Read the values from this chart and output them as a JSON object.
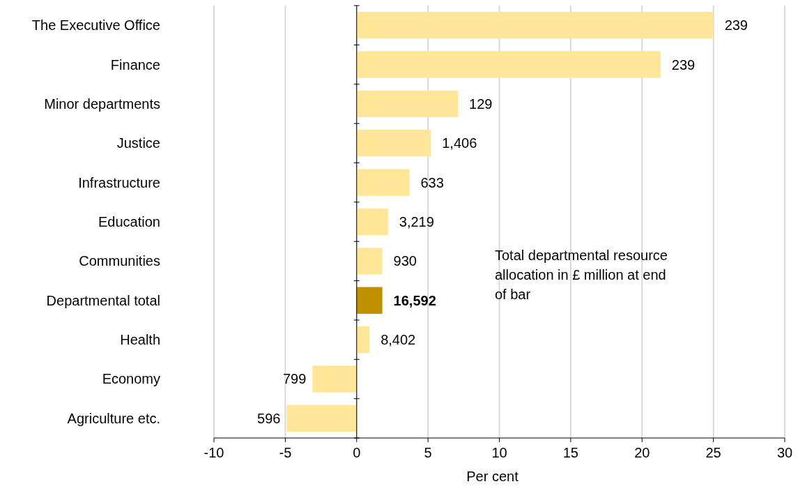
{
  "chart_data": {
    "type": "bar",
    "orientation": "horizontal",
    "categories": [
      "The Executive Office",
      "Finance",
      "Minor departments",
      "Justice",
      "Infrastructure",
      "Education",
      "Communities",
      "Departmental total",
      "Health",
      "Economy",
      "Agriculture etc."
    ],
    "values": [
      25.0,
      21.3,
      7.1,
      5.2,
      3.7,
      2.2,
      1.8,
      1.8,
      0.9,
      -3.1,
      -4.9
    ],
    "colors": [
      "#ffe699",
      "#ffe699",
      "#ffe699",
      "#ffe699",
      "#ffe699",
      "#ffe699",
      "#ffe699",
      "#bf9000",
      "#ffe699",
      "#ffe699",
      "#ffe699"
    ],
    "xlim": [
      -10,
      30
    ],
    "xticks": [
      -10,
      -5,
      0,
      5,
      10,
      15,
      20,
      25,
      30
    ],
    "xlabel": "Per cent",
    "grid": "x",
    "annotations": [
      "Total departmental resource allocation in £ million at end of bar",
      {
        "text": "239",
        "x": 25.0,
        "y": "The Executive Office"
      },
      {
        "text": "239",
        "x": 21.3,
        "y": "Finance"
      },
      {
        "text": "129",
        "x": 7.1,
        "y": "Minor departments"
      },
      {
        "text": "1,406",
        "x": 5.2,
        "y": "Justice"
      },
      {
        "text": "633",
        "x": 3.7,
        "y": "Infrastructure"
      },
      {
        "text": "3,219",
        "x": 2.2,
        "y": "Education"
      },
      {
        "text": "930",
        "x": 1.8,
        "y": "Communities"
      },
      {
        "text": "16,592",
        "x": 1.8,
        "y": "Departmental total"
      },
      {
        "text": "8,402",
        "x": 0.9,
        "y": "Health"
      },
      {
        "text": "799",
        "x": -3.1,
        "y": "Economy"
      },
      {
        "text": "596",
        "x": -4.9,
        "y": "Agriculture etc."
      }
    ]
  }
}
